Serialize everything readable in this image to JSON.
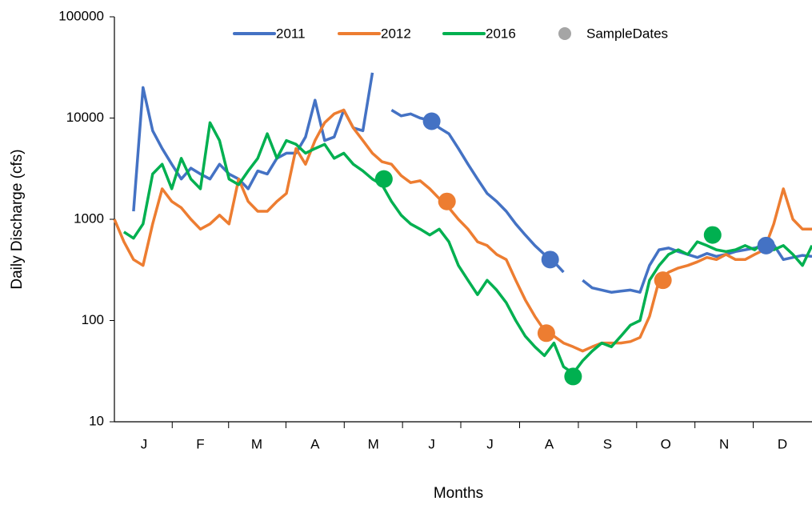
{
  "chart_data": {
    "type": "line",
    "x_label": "Months",
    "y_label": "Daily Discharge (cfs)",
    "log_scale": true,
    "grid": false,
    "legend": "top",
    "xlim": [
      0,
      365
    ],
    "xticks": [
      {
        "value": 15.5,
        "label": "J"
      },
      {
        "value": 45,
        "label": "F"
      },
      {
        "value": 74.5,
        "label": "M"
      },
      {
        "value": 105,
        "label": "A"
      },
      {
        "value": 135.5,
        "label": "M"
      },
      {
        "value": 166,
        "label": "J"
      },
      {
        "value": 196.5,
        "label": "J"
      },
      {
        "value": 227.5,
        "label": "A"
      },
      {
        "value": 258,
        "label": "S"
      },
      {
        "value": 288.5,
        "label": "O"
      },
      {
        "value": 319,
        "label": "N"
      },
      {
        "value": 349.5,
        "label": "D"
      }
    ],
    "ylim": [
      10,
      100000
    ],
    "yticks": [
      10,
      100,
      1000,
      10000,
      100000
    ],
    "x": [
      0,
      5,
      10,
      15,
      20,
      25,
      30,
      35,
      40,
      45,
      50,
      55,
      60,
      65,
      70,
      75,
      80,
      85,
      90,
      95,
      100,
      105,
      110,
      115,
      120,
      125,
      130,
      135,
      140,
      145,
      150,
      155,
      160,
      165,
      170,
      175,
      180,
      185,
      190,
      195,
      200,
      205,
      210,
      215,
      220,
      225,
      230,
      235,
      240,
      245,
      250,
      255,
      260,
      265,
      270,
      275,
      280,
      285,
      290,
      295,
      300,
      305,
      310,
      315,
      320,
      325,
      330,
      335,
      340,
      345,
      350,
      355,
      360,
      365
    ],
    "series": [
      {
        "name": "2011",
        "color": "#4472c4",
        "values": [
          null,
          null,
          1200,
          20000,
          7500,
          5000,
          3500,
          2500,
          3200,
          2800,
          2500,
          3500,
          2800,
          2500,
          2000,
          3000,
          2800,
          4000,
          4500,
          4500,
          6500,
          15000,
          6000,
          6500,
          12000,
          8000,
          7500,
          28000,
          null,
          12000,
          10500,
          11000,
          10000,
          9500,
          8000,
          7000,
          5000,
          3500,
          2500,
          1800,
          1500,
          1200,
          900,
          700,
          550,
          450,
          380,
          300,
          null,
          250,
          210,
          200,
          190,
          195,
          200,
          190,
          350,
          500,
          520,
          480,
          450,
          420,
          460,
          430,
          450,
          480,
          500,
          520,
          550,
          560,
          400,
          420,
          440,
          430
        ]
      },
      {
        "name": "2012",
        "color": "#ed7d31",
        "values": [
          1000,
          600,
          400,
          350,
          900,
          2000,
          1500,
          1300,
          1000,
          800,
          900,
          1100,
          900,
          2500,
          1500,
          1200,
          1200,
          1500,
          1800,
          5000,
          3500,
          6000,
          9000,
          11000,
          12000,
          8000,
          6000,
          4500,
          3700,
          3500,
          2700,
          2300,
          2400,
          2000,
          1600,
          1300,
          1000,
          800,
          600,
          550,
          450,
          400,
          250,
          160,
          110,
          80,
          70,
          60,
          55,
          50,
          55,
          60,
          60,
          60,
          62,
          68,
          110,
          250,
          300,
          330,
          350,
          380,
          420,
          400,
          450,
          400,
          400,
          450,
          500,
          900,
          2000,
          1000,
          800,
          800
        ]
      },
      {
        "name": "2016",
        "color": "#00b050",
        "values": [
          null,
          750,
          650,
          900,
          2800,
          3500,
          2000,
          4000,
          2500,
          2000,
          9000,
          6000,
          2500,
          2200,
          3000,
          4000,
          7000,
          4000,
          6000,
          5500,
          4500,
          5000,
          5500,
          4000,
          4500,
          3500,
          3000,
          2500,
          2200,
          1500,
          1100,
          900,
          800,
          700,
          800,
          600,
          350,
          250,
          180,
          250,
          200,
          150,
          100,
          70,
          55,
          45,
          60,
          35,
          30,
          40,
          50,
          60,
          55,
          70,
          90,
          100,
          250,
          350,
          450,
          500,
          450,
          600,
          550,
          500,
          480,
          500,
          550,
          500,
          600,
          500,
          550,
          450,
          350,
          550
        ]
      },
      {
        "name": "SampleDates",
        "color": "#a5a5a5",
        "type": "scatter",
        "x": [
          166,
          228,
          341,
          174,
          226,
          287,
          141,
          240,
          313
        ],
        "values": [
          9300,
          400,
          550,
          1500,
          75,
          250,
          2500,
          28,
          700
        ],
        "colors": [
          "#4472c4",
          "#4472c4",
          "#4472c4",
          "#ed7d31",
          "#ed7d31",
          "#ed7d31",
          "#00b050",
          "#00b050",
          "#00b050"
        ]
      }
    ]
  }
}
